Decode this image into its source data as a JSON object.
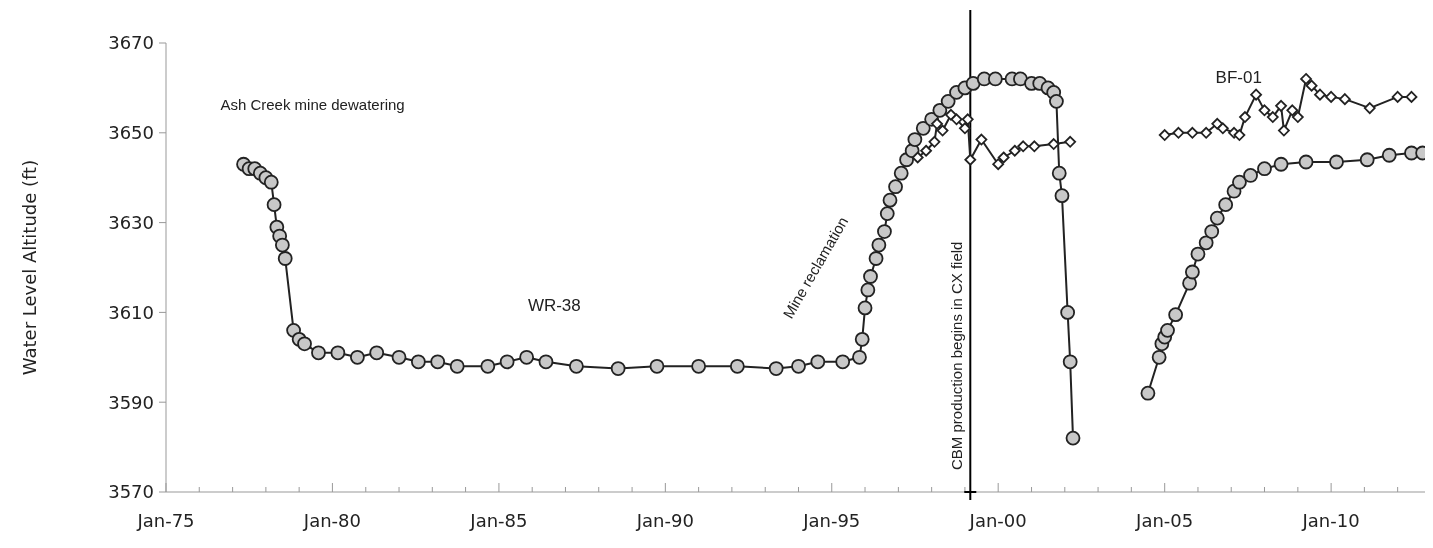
{
  "chart_data": {
    "type": "line",
    "ylabel": "Water Level Altitude (ft)",
    "xlim": [
      "1975-01",
      "2013-01"
    ],
    "xticks": [
      {
        "value": "1975-01",
        "label": "Jan-75"
      },
      {
        "value": "1976-01",
        "label": null
      },
      {
        "value": "1977-01",
        "label": null
      },
      {
        "value": "1978-01",
        "label": null
      },
      {
        "value": "1979-01",
        "label": null
      },
      {
        "value": "1980-01",
        "label": "Jan-80"
      },
      {
        "value": "1981-01",
        "label": null
      },
      {
        "value": "1982-01",
        "label": null
      },
      {
        "value": "1983-01",
        "label": null
      },
      {
        "value": "1984-01",
        "label": null
      },
      {
        "value": "1985-01",
        "label": "Jan-85"
      },
      {
        "value": "1986-01",
        "label": null
      },
      {
        "value": "1987-01",
        "label": null
      },
      {
        "value": "1988-01",
        "label": null
      },
      {
        "value": "1989-01",
        "label": null
      },
      {
        "value": "1990-01",
        "label": "Jan-90"
      },
      {
        "value": "1991-01",
        "label": null
      },
      {
        "value": "1992-01",
        "label": null
      },
      {
        "value": "1993-01",
        "label": null
      },
      {
        "value": "1994-01",
        "label": null
      },
      {
        "value": "1995-01",
        "label": "Jan-95"
      },
      {
        "value": "1996-01",
        "label": null
      },
      {
        "value": "1997-01",
        "label": null
      },
      {
        "value": "1998-01",
        "label": null
      },
      {
        "value": "1999-01",
        "label": null
      },
      {
        "value": "2000-01",
        "label": "Jan-00"
      },
      {
        "value": "2001-01",
        "label": null
      },
      {
        "value": "2002-01",
        "label": null
      },
      {
        "value": "2003-01",
        "label": null
      },
      {
        "value": "2004-01",
        "label": null
      },
      {
        "value": "2005-01",
        "label": "Jan-05"
      },
      {
        "value": "2006-01",
        "label": null
      },
      {
        "value": "2007-01",
        "label": null
      },
      {
        "value": "2008-01",
        "label": null
      },
      {
        "value": "2009-01",
        "label": null
      },
      {
        "value": "2010-01",
        "label": "Jan-10"
      },
      {
        "value": "2011-01",
        "label": null
      },
      {
        "value": "2012-01",
        "label": null
      }
    ],
    "ylim": [
      3570,
      3670
    ],
    "yticks": [
      3570,
      3590,
      3610,
      3630,
      3650,
      3670
    ],
    "grid": false,
    "line_style": "solid",
    "series": [
      {
        "name": "WR-38",
        "color": "#c8c8c8",
        "marker": "circle",
        "x": [
          "1977-05",
          "1977-07",
          "1977-09",
          "1977-11",
          "1978-01",
          "1978-03",
          "1978-04",
          "1978-05",
          "1978-06",
          "1978-07",
          "1978-08",
          "1978-11",
          "1979-01",
          "1979-03",
          "1979-08",
          "1980-03",
          "1980-10",
          "1981-05",
          "1982-01",
          "1982-08",
          "1983-03",
          "1983-10",
          "1984-09",
          "1985-04",
          "1985-11",
          "1986-06",
          "1987-05",
          "1988-08",
          "1989-10",
          "1991-01",
          "1992-03",
          "1993-05",
          "1994-01",
          "1994-08",
          "1995-05",
          "1995-11",
          "1995-12",
          "1996-01",
          "1996-02",
          "1996-03",
          "1996-05",
          "1996-06",
          "1996-08",
          "1996-09",
          "1996-10",
          "1996-12",
          "1997-02",
          "1997-04",
          "1997-06",
          "1997-07",
          "1997-10",
          "1998-01",
          "1998-04",
          "1998-07",
          "1998-10",
          "1999-01",
          "1999-04",
          "1999-08",
          "1999-12",
          "2000-06",
          "2000-09",
          "2001-01",
          "2001-04",
          "2001-07",
          "2001-09",
          "2001-10",
          "2001-11",
          "2001-12",
          "2002-02",
          "2002-03",
          "2002-04",
          "2003-06",
          "2004-07",
          "2004-11",
          "2004-12",
          "2005-01",
          "2005-02",
          "2005-05",
          "2005-10",
          "2005-11",
          "2006-01",
          "2006-04",
          "2006-06",
          "2006-08",
          "2006-11",
          "2007-02",
          "2007-04",
          "2007-08",
          "2008-01",
          "2008-07",
          "2009-04",
          "2010-03",
          "2011-02",
          "2011-10",
          "2012-06",
          "2012-10"
        ],
        "values": [
          3643,
          3642,
          3642,
          3641,
          3640,
          3639,
          3634,
          3629,
          3627,
          3625,
          3622,
          3606,
          3604,
          3603,
          3601,
          3601,
          3600,
          3601,
          3600,
          3599,
          3599,
          3598,
          3598,
          3599,
          3600,
          3599,
          3598,
          3597.5,
          3598,
          3598,
          3598,
          3597.5,
          3598,
          3599,
          3599,
          3600,
          3604,
          3611,
          3615,
          3618,
          3622,
          3625,
          3628,
          3632,
          3635,
          3638,
          3641,
          3644,
          3646,
          3648.5,
          3651,
          3653,
          3655,
          3657,
          3659,
          3660,
          3661,
          3662,
          3662,
          3662,
          3662,
          3661,
          3661,
          3660,
          3659,
          3657,
          3641,
          3636,
          3610,
          3599,
          3582,
          null,
          3592,
          3600,
          3603,
          3604.5,
          3606,
          3609.5,
          3616.5,
          3619,
          3623,
          3625.5,
          3628,
          3631,
          3634,
          3637,
          3639,
          3640.5,
          3642,
          3643,
          3643.5,
          3643.5,
          3644,
          3645,
          3645.5,
          3645.5
        ]
      },
      {
        "name": "BF-01",
        "color": "#ffffff",
        "marker": "diamond",
        "x": [
          "1997-08",
          "1997-11",
          "1998-02",
          "1998-03",
          "1998-05",
          "1998-08",
          "1998-10",
          "1999-01",
          "1999-02",
          "1999-03",
          "1999-07",
          "2000-01",
          "2000-03",
          "2000-07",
          "2000-10",
          "2001-02",
          "2001-09",
          "2002-03",
          "2003-06",
          "2005-01",
          "2005-06",
          "2005-11",
          "2006-04",
          "2006-08",
          "2006-10",
          "2007-02",
          "2007-04",
          "2007-06",
          "2007-10",
          "2008-01",
          "2008-04",
          "2008-07",
          "2008-08",
          "2008-11",
          "2009-01",
          "2009-04",
          "2009-06",
          "2009-09",
          "2010-01",
          "2010-06",
          "2011-03",
          "2012-01",
          "2012-06"
        ],
        "values": [
          3644.5,
          3646,
          3648,
          3652,
          3650.5,
          3654,
          3653,
          3651,
          3653,
          3644,
          3648.5,
          3643,
          3644.5,
          3646,
          3647,
          3647,
          3647.5,
          3648,
          null,
          3649.5,
          3650,
          3650,
          3650,
          3652,
          3651,
          3650,
          3649.5,
          3653.5,
          3658.5,
          3655,
          3653.5,
          3656,
          3650.5,
          3655,
          3653.5,
          3662,
          3660.5,
          3658.5,
          3658,
          3657.5,
          3655.5,
          3658,
          3658
        ]
      }
    ],
    "ref_lines": [
      {
        "axis": "x",
        "value": "1999-03",
        "label": "CBM production begins in CX field",
        "color": "#000000"
      }
    ],
    "annotations": [
      "Ash Creek mine dewatering",
      "Mine reclamation"
    ]
  }
}
